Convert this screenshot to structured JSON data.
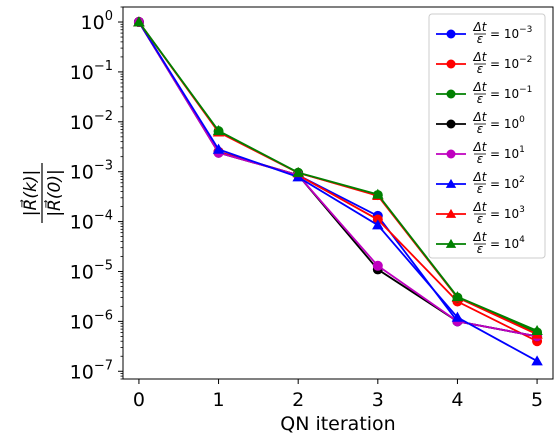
{
  "chart_data": {
    "type": "line",
    "x": [
      0,
      1,
      2,
      3,
      4,
      5
    ],
    "xlabel": "QN iteration",
    "ylabel_numerator": "|R⃗(k)|",
    "ylabel_denominator": "|R⃗(0)|",
    "xlim": [
      -0.2,
      5.2
    ],
    "ylim": [
      7e-08,
      2.0
    ],
    "yscale": "log",
    "xticks": [
      "0",
      "1",
      "2",
      "3",
      "4",
      "5"
    ],
    "yticks": [
      {
        "mant": "10",
        "exp": "0",
        "value": 1
      },
      {
        "mant": "10",
        "exp": "−1",
        "value": 0.1
      },
      {
        "mant": "10",
        "exp": "−2",
        "value": 0.01
      },
      {
        "mant": "10",
        "exp": "−3",
        "value": 0.001
      },
      {
        "mant": "10",
        "exp": "−4",
        "value": 0.0001
      },
      {
        "mant": "10",
        "exp": "−5",
        "value": 1e-05
      },
      {
        "mant": "10",
        "exp": "−6",
        "value": 1e-06
      },
      {
        "mant": "10",
        "exp": "−7",
        "value": 1e-07
      }
    ],
    "grid": false,
    "legend_position": "top-right",
    "series": [
      {
        "name": "Δt/ε = 10^-3",
        "ratio_num": "Δt",
        "ratio_den": "ε",
        "pow": "−3",
        "color": "#0000ff",
        "marker": "circle",
        "values": [
          1.0,
          0.0025,
          0.00085,
          0.00013,
          1e-06,
          5e-07
        ]
      },
      {
        "name": "Δt/ε = 10^-2",
        "ratio_num": "Δt",
        "ratio_den": "ε",
        "pow": "−2",
        "color": "#ff0000",
        "marker": "circle",
        "values": [
          1.0,
          0.0025,
          0.00085,
          0.00011,
          2.5e-06,
          4e-07
        ]
      },
      {
        "name": "Δt/ε = 10^-1",
        "ratio_num": "Δt",
        "ratio_den": "ε",
        "pow": "−1",
        "color": "#008000",
        "marker": "circle",
        "values": [
          1.0,
          0.0065,
          0.00095,
          0.00034,
          3e-06,
          6e-07
        ]
      },
      {
        "name": "Δt/ε = 10^0",
        "ratio_num": "Δt",
        "ratio_den": "ε",
        "pow": "0",
        "color": "#000000",
        "marker": "circle",
        "values": [
          1.0,
          0.0024,
          0.00085,
          1.1e-05,
          1e-06,
          5e-07
        ]
      },
      {
        "name": "Δt/ε = 10^1",
        "ratio_num": "Δt",
        "ratio_den": "ε",
        "pow": "1",
        "color": "#bf00bf",
        "marker": "circle",
        "values": [
          1.0,
          0.0024,
          0.00085,
          1.3e-05,
          1e-06,
          5e-07
        ]
      },
      {
        "name": "Δt/ε = 10^2",
        "ratio_num": "Δt",
        "ratio_den": "ε",
        "pow": "2",
        "color": "#0000ff",
        "marker": "triangle",
        "values": [
          1.0,
          0.0028,
          0.00078,
          8.5e-05,
          1.2e-06,
          1.6e-07
        ]
      },
      {
        "name": "Δt/ε = 10^3",
        "ratio_num": "Δt",
        "ratio_den": "ε",
        "pow": "3",
        "color": "#ff0000",
        "marker": "triangle",
        "values": [
          1.0,
          0.0062,
          0.00095,
          0.00033,
          3e-06,
          5.5e-07
        ]
      },
      {
        "name": "Δt/ε = 10^4",
        "ratio_num": "Δt",
        "ratio_den": "ε",
        "pow": "4",
        "color": "#008000",
        "marker": "triangle",
        "values": [
          1.0,
          0.0066,
          0.00096,
          0.00035,
          3.1e-06,
          6.5e-07
        ]
      }
    ]
  }
}
